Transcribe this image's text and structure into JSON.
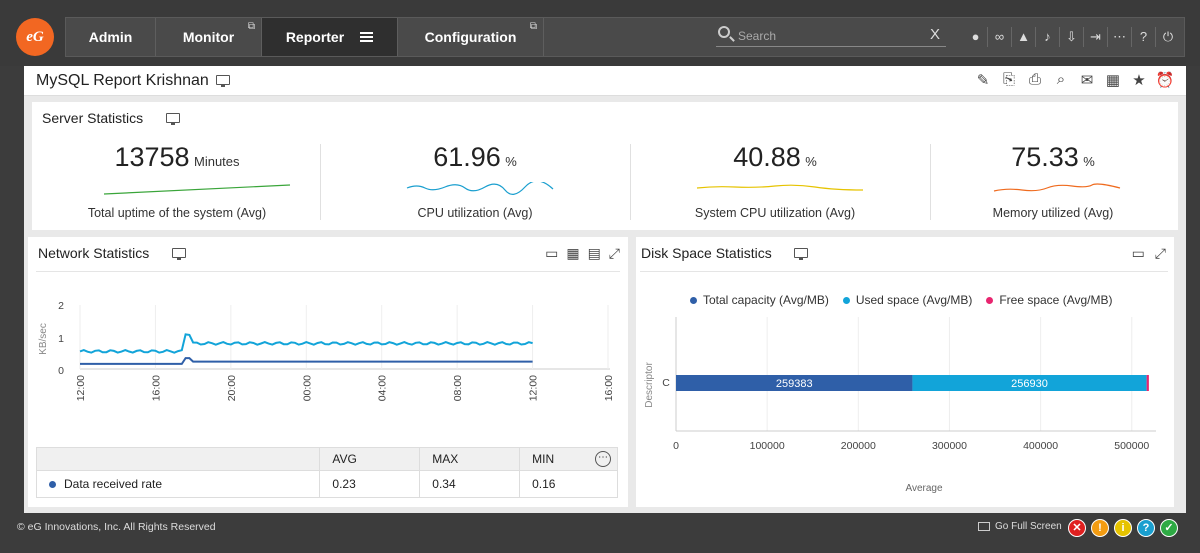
{
  "nav": {
    "tabs": [
      {
        "label": "Admin"
      },
      {
        "label": "Monitor"
      },
      {
        "label": "Reporter"
      },
      {
        "label": "Configuration"
      }
    ],
    "search_placeholder": "Search",
    "search_clear": "X",
    "logo_text": "eG"
  },
  "report": {
    "title": "MySQL Report Krishnan"
  },
  "server": {
    "title": "Server Statistics",
    "kpis": [
      {
        "value": "13758",
        "unit": "Minutes",
        "label": "Total uptime of the system (Avg)",
        "color": "#3aa53a"
      },
      {
        "value": "61.96",
        "unit": "%",
        "label": "CPU utilization (Avg)",
        "color": "#1a9fcf"
      },
      {
        "value": "40.88",
        "unit": "%",
        "label": "System CPU utilization (Avg)",
        "color": "#e6c300"
      },
      {
        "value": "75.33",
        "unit": "%",
        "label": "Memory utilized (Avg)",
        "color": "#ef6b1f"
      }
    ]
  },
  "network": {
    "title": "Network Statistics",
    "ylabel": "KB/sec",
    "yticks": [
      "2",
      "1",
      "0"
    ],
    "xticks": [
      "12:00",
      "16:00",
      "20:00",
      "00:00",
      "04:00",
      "08:00",
      "12:00",
      "16:00"
    ],
    "table": {
      "headers": [
        "",
        "AVG",
        "MAX",
        "MIN"
      ],
      "rows": [
        {
          "name": "Data received rate",
          "avg": "0.23",
          "max": "0.34",
          "min": "0.16",
          "color": "#2f5fa8"
        }
      ]
    }
  },
  "disk": {
    "title": "Disk Space Statistics",
    "legend": [
      {
        "label": "Total capacity (Avg/MB)",
        "color": "#2f5fa8"
      },
      {
        "label": "Used space (Avg/MB)",
        "color": "#12a4d9"
      },
      {
        "label": "Free space (Avg/MB)",
        "color": "#e8256f"
      }
    ],
    "ylabel": "Descriptor",
    "xlabel": "Average",
    "category": "C",
    "xticks": [
      "0",
      "100000",
      "200000",
      "300000",
      "400000",
      "500000"
    ]
  },
  "chart_data": [
    {
      "type": "line",
      "title": "Network Statistics",
      "ylabel": "KB/sec",
      "ylim": [
        0,
        2
      ],
      "x_ticks": [
        "12:00",
        "16:00",
        "20:00",
        "00:00",
        "04:00",
        "08:00",
        "12:00",
        "16:00"
      ],
      "series": [
        {
          "name": "Data received rate",
          "color": "#2f5fa8",
          "avg": 0.23,
          "max": 0.34,
          "min": 0.16
        },
        {
          "color": "#12a4d9",
          "approx_level": 0.8,
          "peak": 1.1
        }
      ]
    },
    {
      "type": "bar",
      "orientation": "horizontal",
      "title": "Disk Space Statistics",
      "xlabel": "Average",
      "ylabel": "Descriptor",
      "categories": [
        "C"
      ],
      "xlim": [
        0,
        520000
      ],
      "series": [
        {
          "name": "Total capacity (Avg/MB)",
          "values": [
            259383
          ],
          "color": "#2f5fa8"
        },
        {
          "name": "Used space (Avg/MB)",
          "values": [
            256930
          ],
          "color": "#12a4d9"
        },
        {
          "name": "Free space (Avg/MB)",
          "values": [
            2453
          ],
          "color": "#e8256f"
        }
      ]
    }
  ],
  "footer": {
    "copyright": "© eG Innovations, Inc. All Rights Reserved",
    "fullscreen": "Go Full Screen",
    "status_buttons": [
      {
        "symbol": "✕",
        "color": "#e02020"
      },
      {
        "symbol": "!",
        "color": "#f39c12"
      },
      {
        "symbol": "i",
        "color": "#e6c300"
      },
      {
        "symbol": "?",
        "color": "#1a9fcf"
      },
      {
        "symbol": "✓",
        "color": "#2eaa44"
      }
    ]
  }
}
